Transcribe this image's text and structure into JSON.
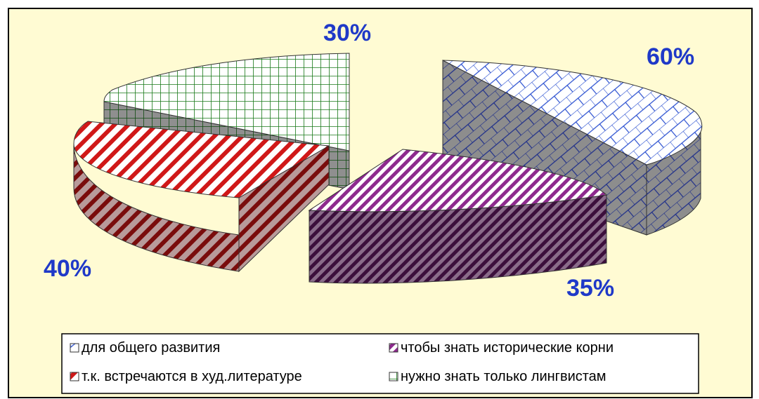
{
  "chart_data": {
    "type": "pie",
    "variant": "3d-exploded",
    "slices": [
      {
        "label": "для общего развития",
        "value": 60,
        "value_label": "60%",
        "pattern": "brick",
        "color": "#2a4fd0"
      },
      {
        "label": "чтобы знать исторические корни",
        "value": 35,
        "value_label": "35%",
        "pattern": "diagonal",
        "color": "#8e2a8e"
      },
      {
        "label": "т.к.  встречаются в худ.литературе",
        "value": 40,
        "value_label": "40%",
        "pattern": "diagonal",
        "color": "#d01818"
      },
      {
        "label": "нужно знать только лингвистам",
        "value": 30,
        "value_label": "30%",
        "pattern": "grid",
        "color": "#187818"
      }
    ],
    "legend": {
      "position": "bottom"
    },
    "colors": {
      "background": "#fffbd3",
      "label": "#1f39c8"
    }
  }
}
